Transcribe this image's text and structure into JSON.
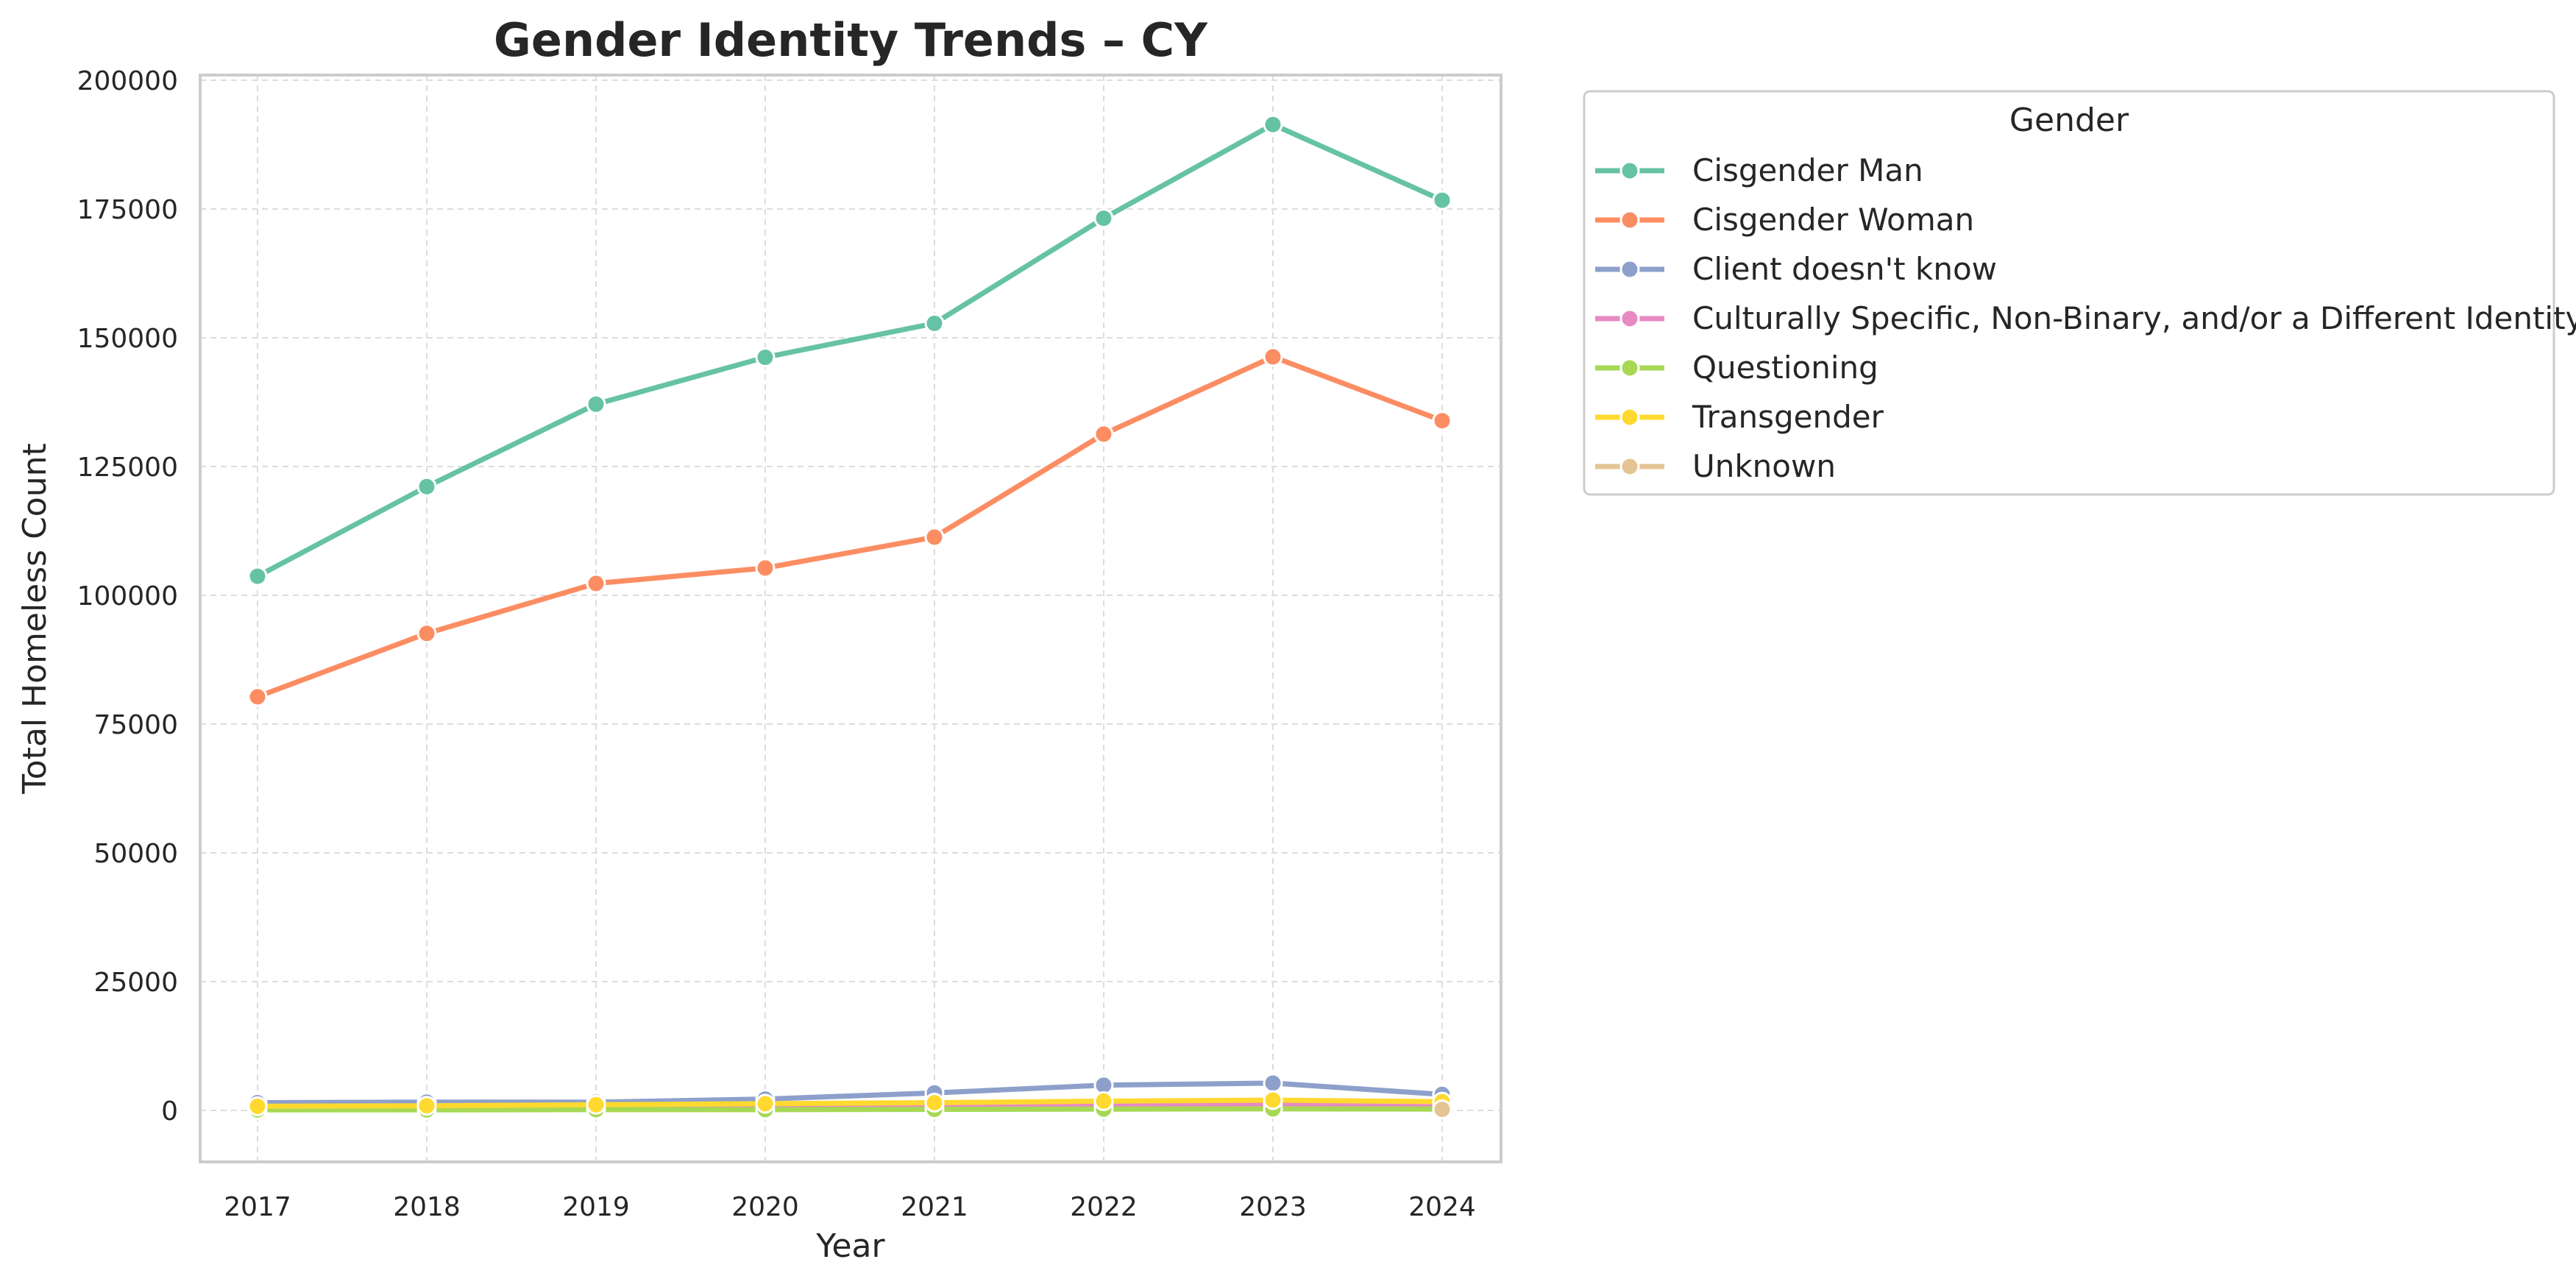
{
  "chart_data": {
    "type": "line",
    "title": "Gender Identity Trends – CY",
    "xlabel": "Year",
    "ylabel": "Total Homeless Count",
    "x": [
      2017,
      2018,
      2019,
      2020,
      2021,
      2022,
      2023,
      2024
    ],
    "x_tick_labels": [
      "2017",
      "2018",
      "2019",
      "2020",
      "2021",
      "2022",
      "2023",
      "2024"
    ],
    "ylim": [
      -10000,
      201000
    ],
    "y_ticks": [
      0,
      25000,
      50000,
      75000,
      100000,
      125000,
      150000,
      175000,
      200000
    ],
    "y_tick_labels": [
      "0",
      "25000",
      "50000",
      "75000",
      "100000",
      "125000",
      "150000",
      "175000",
      "200000"
    ],
    "grid": true,
    "legend": {
      "title": "Gender",
      "placement": "outside-right-top"
    },
    "series": [
      {
        "name": "Cisgender Man",
        "color": "#66c2a5",
        "values": [
          103700,
          121100,
          137100,
          146200,
          152800,
          173200,
          191400,
          176700
        ]
      },
      {
        "name": "Cisgender Woman",
        "color": "#fc8d62",
        "values": [
          80300,
          92600,
          102300,
          105300,
          111300,
          131300,
          146300,
          133900
        ]
      },
      {
        "name": "Client doesn't know",
        "color": "#8da0cb",
        "values": [
          1500,
          1600,
          1600,
          2200,
          3400,
          4900,
          5300,
          3100
        ]
      },
      {
        "name": "Culturally Specific, Non-Binary, and/or a Different Identity",
        "color": "#e78ac3",
        "values": [
          400,
          500,
          600,
          700,
          900,
          1100,
          1200,
          1000
        ]
      },
      {
        "name": "Questioning",
        "color": "#a6d854",
        "values": [
          100,
          100,
          150,
          150,
          200,
          250,
          300,
          250
        ]
      },
      {
        "name": "Transgender",
        "color": "#ffd92f",
        "values": [
          800,
          900,
          1100,
          1300,
          1500,
          1800,
          2000,
          1700
        ]
      },
      {
        "name": "Unknown",
        "color": "#e5c494",
        "values": [
          null,
          null,
          null,
          null,
          null,
          null,
          null,
          200
        ]
      }
    ]
  }
}
